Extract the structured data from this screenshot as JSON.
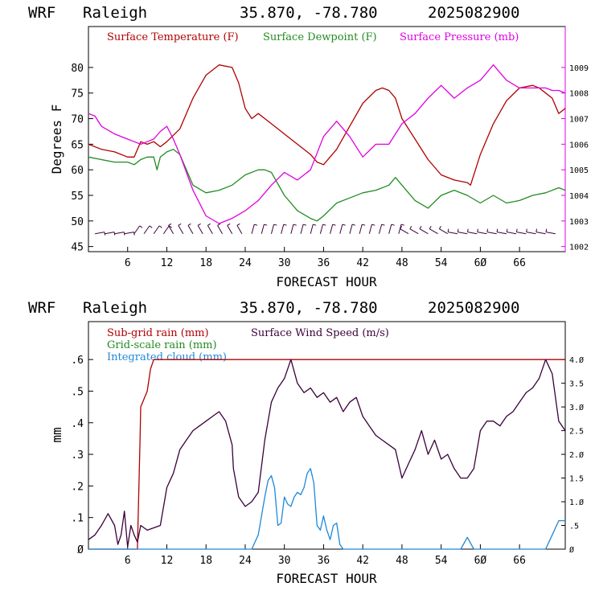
{
  "chart_data": [
    {
      "type": "line",
      "header": {
        "model": "WRF",
        "station": "Raleigh",
        "coords": "35.870, -78.780",
        "run": "2025082900"
      },
      "xlabel": "FORECAST HOUR",
      "ylabel": "Degrees F",
      "xlim": [
        0,
        73
      ],
      "ylim": [
        44,
        88
      ],
      "y2lim": [
        1001.8,
        1010.6
      ],
      "x_ticks": [
        6,
        12,
        18,
        24,
        30,
        36,
        42,
        48,
        54,
        60,
        66
      ],
      "x_tick_labels": [
        "6",
        "12",
        "18",
        "24",
        "30",
        "36",
        "42",
        "48",
        "54",
        "6Ø",
        "66"
      ],
      "y_ticks": [
        45,
        50,
        55,
        60,
        65,
        70,
        75,
        80
      ],
      "y2_ticks": [
        1002,
        1003,
        1004,
        1005,
        1006,
        1007,
        1008,
        1009
      ],
      "series": [
        {
          "name": "Surface Temperature (F)",
          "color": "#b00000",
          "axis": "left",
          "x": [
            0,
            2,
            4,
            6,
            7,
            8,
            9,
            10,
            11,
            12,
            14,
            16,
            18,
            20,
            22,
            23,
            24,
            25,
            26,
            27,
            28,
            30,
            32,
            34,
            35,
            36,
            38,
            40,
            42,
            44,
            45,
            46,
            47,
            48,
            50,
            52,
            54,
            56,
            58,
            58.5,
            60,
            62,
            64,
            66,
            68,
            69,
            70,
            71,
            72,
            73
          ],
          "y": [
            65,
            64,
            63.5,
            62.5,
            62.5,
            65.5,
            65,
            65.5,
            64.5,
            65.5,
            68,
            74,
            78.5,
            80.5,
            80,
            77,
            72,
            70,
            71,
            70,
            69,
            67,
            65,
            63,
            61.5,
            61,
            64,
            68.5,
            73,
            75.5,
            76,
            75.5,
            74,
            70,
            66,
            62,
            59,
            58,
            57.5,
            57,
            63,
            69,
            73.5,
            76,
            76.5,
            76,
            75,
            74,
            71,
            72
          ]
        },
        {
          "name": "Surface Dewpoint (F)",
          "color": "#228b22",
          "axis": "left",
          "x": [
            0,
            2,
            4,
            6,
            7,
            8,
            9,
            10,
            10.5,
            11,
            12,
            13,
            14,
            16,
            18,
            20,
            22,
            24,
            26,
            27,
            28,
            30,
            32,
            34,
            35,
            36,
            38,
            40,
            42,
            44,
            46,
            47,
            48,
            50,
            52,
            54,
            56,
            58,
            60,
            62,
            64,
            66,
            68,
            70,
            72,
            73
          ],
          "y": [
            62.5,
            62,
            61.5,
            61.5,
            61,
            62,
            62.5,
            62.5,
            60,
            62.5,
            63.5,
            64,
            63,
            57,
            55.5,
            56,
            57,
            59,
            60,
            60,
            59.5,
            55,
            52,
            50.5,
            50,
            51,
            53.5,
            54.5,
            55.5,
            56,
            57,
            58.5,
            57,
            54,
            52.5,
            55,
            56,
            55,
            53.5,
            55,
            53.5,
            54,
            55,
            55.5,
            56.5,
            56
          ]
        },
        {
          "name": "Surface Pressure (mb)",
          "color": "#e000e0",
          "axis": "right",
          "x": [
            0,
            1,
            2,
            4,
            6,
            7,
            8,
            9,
            10,
            11,
            12,
            13,
            14,
            16,
            18,
            20,
            22,
            24,
            26,
            28,
            30,
            32,
            34,
            36,
            38,
            40,
            42,
            44,
            46,
            48,
            50,
            52,
            54,
            56,
            58,
            60,
            62,
            64,
            66,
            68,
            70,
            71,
            72,
            73
          ],
          "y": [
            1007.2,
            1007.1,
            1006.7,
            1006.4,
            1006.2,
            1006.1,
            1006.0,
            1006.1,
            1006.2,
            1006.5,
            1006.7,
            1006.2,
            1005.6,
            1004.2,
            1003.2,
            1002.9,
            1003.1,
            1003.4,
            1003.8,
            1004.4,
            1004.9,
            1004.6,
            1005.0,
            1006.3,
            1006.9,
            1006.3,
            1005.5,
            1006.0,
            1006.0,
            1006.8,
            1007.2,
            1007.8,
            1008.3,
            1007.8,
            1008.2,
            1008.5,
            1009.1,
            1008.5,
            1008.2,
            1008.2,
            1008.2,
            1008.1,
            1008.1,
            1008.0
          ]
        }
      ],
      "wind_barbs": {
        "x_start": 1,
        "x_end": 72,
        "x_step": 1.5
      }
    },
    {
      "type": "line",
      "header": {
        "model": "WRF",
        "station": "Raleigh",
        "coords": "35.870, -78.780",
        "run": "2025082900"
      },
      "xlabel": "FORECAST HOUR",
      "ylabel": "mm",
      "xlim": [
        0,
        73
      ],
      "ylim": [
        0,
        0.72
      ],
      "y2lim": [
        0,
        4.8
      ],
      "x_ticks": [
        6,
        12,
        18,
        24,
        30,
        36,
        42,
        48,
        54,
        60,
        66
      ],
      "x_tick_labels": [
        "6",
        "12",
        "18",
        "24",
        "30",
        "36",
        "42",
        "48",
        "54",
        "6Ø",
        "66"
      ],
      "y_ticks": [
        0,
        0.1,
        0.2,
        0.3,
        0.4,
        0.5,
        0.6
      ],
      "y_tick_labels": [
        "Ø",
        ".1",
        ".2",
        ".3",
        ".4",
        ".5",
        ".6"
      ],
      "y2_ticks": [
        0,
        0.5,
        1.0,
        1.5,
        2.0,
        2.5,
        3.0,
        3.5,
        4.0
      ],
      "y2_tick_labels": [
        "Ø",
        ".5",
        "1.Ø",
        "1.5",
        "2.Ø",
        "2.5",
        "3.Ø",
        "3.5",
        "4.Ø"
      ],
      "series": [
        {
          "name": "Sub-grid rain (mm)",
          "color": "#b00000",
          "axis": "left",
          "x": [
            0,
            7.5,
            7.9,
            8,
            9,
            9.5,
            10,
            11,
            73
          ],
          "y": [
            0,
            0,
            0.35,
            0.45,
            0.5,
            0.57,
            0.6,
            0.6,
            0.6
          ]
        },
        {
          "name": "Grid-scale rain (mm)",
          "color": "#228b22",
          "axis": "left",
          "x": [],
          "y": []
        },
        {
          "name": "Integrated cloud (mm)",
          "color": "#1e88d8",
          "axis": "right",
          "x": [
            0,
            25,
            26,
            27,
            27.5,
            28,
            28.5,
            29,
            29.5,
            30,
            30.5,
            31,
            31.5,
            32,
            32.5,
            33,
            33.5,
            34,
            34.5,
            35,
            35.5,
            36,
            36.5,
            37,
            37.5,
            38,
            38.5,
            39,
            40,
            57,
            58,
            59,
            70,
            71,
            72,
            73
          ],
          "y": [
            0,
            0,
            0.3,
            1.1,
            1.45,
            1.55,
            1.3,
            0.5,
            0.55,
            1.1,
            0.95,
            0.9,
            1.1,
            1.2,
            1.15,
            1.3,
            1.6,
            1.7,
            1.4,
            0.5,
            0.4,
            0.7,
            0.4,
            0.2,
            0.5,
            0.55,
            0.1,
            0,
            0,
            0,
            0.25,
            0,
            0,
            0.3,
            0.6,
            0.6
          ]
        },
        {
          "name": "Surface Wind Speed (m/s)",
          "color": "#3a003a",
          "axis": "right",
          "x": [
            0,
            1,
            2,
            3,
            4,
            4.5,
            5,
            5.5,
            6,
            6.5,
            7,
            7.5,
            8,
            9,
            10,
            11,
            12,
            13,
            14,
            15,
            16,
            17,
            18,
            19,
            20,
            21,
            22,
            22.2,
            23,
            24,
            25,
            26,
            27,
            28,
            29,
            30,
            31,
            32,
            33,
            34,
            35,
            36,
            37,
            38,
            39,
            40,
            41,
            42,
            43,
            44,
            45,
            46,
            47,
            48,
            49,
            50,
            51,
            52,
            53,
            54,
            55,
            56,
            57,
            58,
            59,
            60,
            61,
            62,
            63,
            64,
            65,
            66,
            67,
            68,
            69,
            70,
            71,
            72,
            73
          ],
          "y": [
            0.2,
            0.3,
            0.5,
            0.75,
            0.5,
            0.1,
            0.3,
            0.8,
            0.05,
            0.5,
            0.3,
            0.15,
            0.5,
            0.4,
            0.45,
            0.5,
            1.3,
            1.6,
            2.1,
            2.3,
            2.5,
            2.6,
            2.7,
            2.8,
            2.9,
            2.7,
            2.2,
            1.7,
            1.1,
            0.9,
            1.0,
            1.2,
            2.3,
            3.1,
            3.4,
            3.6,
            4.0,
            3.5,
            3.3,
            3.4,
            3.2,
            3.3,
            3.1,
            3.2,
            2.9,
            3.1,
            3.2,
            2.8,
            2.6,
            2.4,
            2.3,
            2.2,
            2.1,
            1.5,
            1.8,
            2.1,
            2.5,
            2.0,
            2.3,
            1.9,
            2.0,
            1.7,
            1.5,
            1.5,
            1.7,
            2.5,
            2.7,
            2.7,
            2.6,
            2.8,
            2.9,
            3.1,
            3.3,
            3.4,
            3.6,
            4.0,
            3.7,
            2.7,
            2.5
          ]
        }
      ]
    }
  ]
}
